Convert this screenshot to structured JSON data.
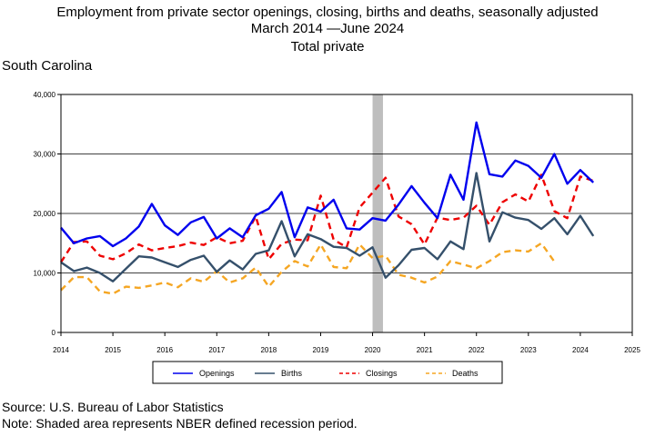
{
  "title_line1": "Employment from private sector openings, closing, births and deaths, seasonally adjusted",
  "title_line2": "March 2014 —June 2024",
  "title_line3": "Total private",
  "region": "South Carolina",
  "source": "Source: U.S. Bureau of Labor Statistics",
  "note": "Note: Shaded area represents NBER defined recession period.",
  "chart_data": {
    "type": "line",
    "xlabel": "",
    "ylabel": "",
    "xlim": [
      2014,
      2025
    ],
    "ylim": [
      0,
      40000
    ],
    "x_ticks": [
      "2014",
      "2015",
      "2016",
      "2017",
      "2018",
      "2019",
      "2020",
      "2021",
      "2022",
      "2023",
      "2024",
      "2025"
    ],
    "y_ticks": [
      "0",
      "10,000",
      "20,000",
      "30,000",
      "40,000"
    ],
    "grid": "horizontal",
    "legend_position": "bottom",
    "recession": {
      "start": 2020.0,
      "end": 2020.2,
      "color": "#bebebe"
    },
    "series": [
      {
        "name": "Openings",
        "color": "#0000ee",
        "style": "solid",
        "points": [
          [
            2014.0,
            17600
          ],
          [
            2014.25,
            15000
          ],
          [
            2014.5,
            15800
          ],
          [
            2014.75,
            16200
          ],
          [
            2015.0,
            14500
          ],
          [
            2015.25,
            15800
          ],
          [
            2015.5,
            17800
          ],
          [
            2015.75,
            21600
          ],
          [
            2016.0,
            18000
          ],
          [
            2016.25,
            16400
          ],
          [
            2016.5,
            18500
          ],
          [
            2016.75,
            19400
          ],
          [
            2017.0,
            15800
          ],
          [
            2017.25,
            17500
          ],
          [
            2017.5,
            16000
          ],
          [
            2017.75,
            19700
          ],
          [
            2018.0,
            20800
          ],
          [
            2018.25,
            23600
          ],
          [
            2018.5,
            16000
          ],
          [
            2018.75,
            21000
          ],
          [
            2019.0,
            20300
          ],
          [
            2019.25,
            22300
          ],
          [
            2019.5,
            17500
          ],
          [
            2019.75,
            17300
          ],
          [
            2020.0,
            19200
          ],
          [
            2020.25,
            18800
          ],
          [
            2020.5,
            21500
          ],
          [
            2020.75,
            24600
          ],
          [
            2021.0,
            21800
          ],
          [
            2021.25,
            19200
          ],
          [
            2021.5,
            26500
          ],
          [
            2021.75,
            22300
          ],
          [
            2022.0,
            35300
          ],
          [
            2022.25,
            26600
          ],
          [
            2022.5,
            26200
          ],
          [
            2022.75,
            28900
          ],
          [
            2023.0,
            28000
          ],
          [
            2023.25,
            26000
          ],
          [
            2023.5,
            30000
          ],
          [
            2023.75,
            25000
          ],
          [
            2024.0,
            27300
          ],
          [
            2024.25,
            25200
          ]
        ]
      },
      {
        "name": "Births",
        "color": "#35506b",
        "style": "solid",
        "points": [
          [
            2014.0,
            11800
          ],
          [
            2014.25,
            10300
          ],
          [
            2014.5,
            10900
          ],
          [
            2014.75,
            10000
          ],
          [
            2015.0,
            8600
          ],
          [
            2015.25,
            10700
          ],
          [
            2015.5,
            12800
          ],
          [
            2015.75,
            12600
          ],
          [
            2016.0,
            11800
          ],
          [
            2016.25,
            11000
          ],
          [
            2016.5,
            12200
          ],
          [
            2016.75,
            12900
          ],
          [
            2017.0,
            10200
          ],
          [
            2017.25,
            12100
          ],
          [
            2017.5,
            10600
          ],
          [
            2017.75,
            13200
          ],
          [
            2018.0,
            13800
          ],
          [
            2018.25,
            18700
          ],
          [
            2018.5,
            12800
          ],
          [
            2018.75,
            16500
          ],
          [
            2019.0,
            15700
          ],
          [
            2019.25,
            14400
          ],
          [
            2019.5,
            14200
          ],
          [
            2019.75,
            12900
          ],
          [
            2020.0,
            14300
          ],
          [
            2020.25,
            9200
          ],
          [
            2020.5,
            11300
          ],
          [
            2020.75,
            13900
          ],
          [
            2021.0,
            14200
          ],
          [
            2021.25,
            12300
          ],
          [
            2021.5,
            15300
          ],
          [
            2021.75,
            14000
          ],
          [
            2022.0,
            26800
          ],
          [
            2022.25,
            15300
          ],
          [
            2022.5,
            20200
          ],
          [
            2022.75,
            19300
          ],
          [
            2023.0,
            18900
          ],
          [
            2023.25,
            17400
          ],
          [
            2023.5,
            19200
          ],
          [
            2023.75,
            16500
          ],
          [
            2024.0,
            19600
          ],
          [
            2024.25,
            16200
          ]
        ]
      },
      {
        "name": "Closings",
        "color": "#ee0000",
        "style": "dashed",
        "points": [
          [
            2014.0,
            11800
          ],
          [
            2014.25,
            15200
          ],
          [
            2014.5,
            15300
          ],
          [
            2014.75,
            12900
          ],
          [
            2015.0,
            12300
          ],
          [
            2015.25,
            13300
          ],
          [
            2015.5,
            14800
          ],
          [
            2015.75,
            13800
          ],
          [
            2016.0,
            14200
          ],
          [
            2016.25,
            14500
          ],
          [
            2016.5,
            15100
          ],
          [
            2016.75,
            14700
          ],
          [
            2017.0,
            16000
          ],
          [
            2017.25,
            15000
          ],
          [
            2017.5,
            15400
          ],
          [
            2017.75,
            19500
          ],
          [
            2018.0,
            12300
          ],
          [
            2018.25,
            14900
          ],
          [
            2018.5,
            15600
          ],
          [
            2018.75,
            15500
          ],
          [
            2019.0,
            23000
          ],
          [
            2019.25,
            15600
          ],
          [
            2019.5,
            14300
          ],
          [
            2019.75,
            21000
          ],
          [
            2020.0,
            23500
          ],
          [
            2020.25,
            26000
          ],
          [
            2020.5,
            19500
          ],
          [
            2020.75,
            18200
          ],
          [
            2021.0,
            14800
          ],
          [
            2021.25,
            19300
          ],
          [
            2021.5,
            18900
          ],
          [
            2021.75,
            19300
          ],
          [
            2022.0,
            21300
          ],
          [
            2022.25,
            18100
          ],
          [
            2022.5,
            21900
          ],
          [
            2022.75,
            23200
          ],
          [
            2023.0,
            22000
          ],
          [
            2023.25,
            26500
          ],
          [
            2023.5,
            20400
          ],
          [
            2023.75,
            19200
          ],
          [
            2024.0,
            26200
          ],
          [
            2024.25,
            25500
          ]
        ]
      },
      {
        "name": "Deaths",
        "color": "#f5a623",
        "style": "dashed",
        "points": [
          [
            2014.0,
            7100
          ],
          [
            2014.25,
            9300
          ],
          [
            2014.5,
            9300
          ],
          [
            2014.75,
            6900
          ],
          [
            2015.0,
            6500
          ],
          [
            2015.25,
            7700
          ],
          [
            2015.5,
            7500
          ],
          [
            2015.75,
            7900
          ],
          [
            2016.0,
            8400
          ],
          [
            2016.25,
            7600
          ],
          [
            2016.5,
            9100
          ],
          [
            2016.75,
            8500
          ],
          [
            2017.0,
            10300
          ],
          [
            2017.25,
            8400
          ],
          [
            2017.5,
            9100
          ],
          [
            2017.75,
            10900
          ],
          [
            2018.0,
            7700
          ],
          [
            2018.25,
            10200
          ],
          [
            2018.5,
            12000
          ],
          [
            2018.75,
            11100
          ],
          [
            2019.0,
            14800
          ],
          [
            2019.25,
            11000
          ],
          [
            2019.5,
            10800
          ],
          [
            2019.75,
            14800
          ],
          [
            2020.0,
            12500
          ],
          [
            2020.25,
            12900
          ],
          [
            2020.5,
            9700
          ],
          [
            2020.75,
            9200
          ],
          [
            2021.0,
            8400
          ],
          [
            2021.25,
            9400
          ],
          [
            2021.5,
            12000
          ],
          [
            2021.75,
            11400
          ],
          [
            2022.0,
            10800
          ],
          [
            2022.25,
            12000
          ],
          [
            2022.5,
            13500
          ],
          [
            2022.75,
            13800
          ],
          [
            2023.0,
            13600
          ],
          [
            2023.25,
            15000
          ],
          [
            2023.5,
            11900
          ]
        ]
      }
    ]
  }
}
